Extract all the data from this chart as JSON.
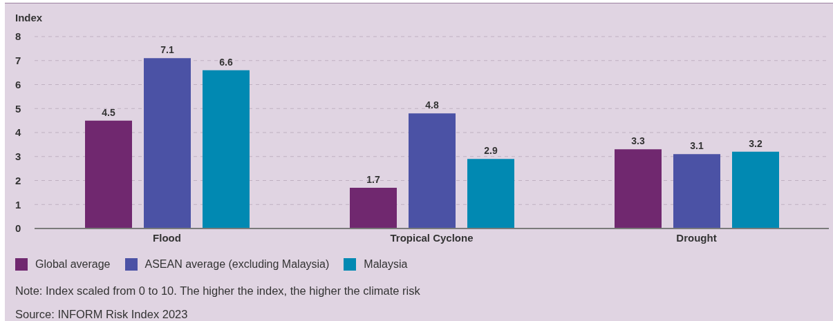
{
  "chart_data": {
    "type": "bar",
    "ylabel": "Index",
    "categories": [
      "Flood",
      "Tropical Cyclone",
      "Drought"
    ],
    "series": [
      {
        "name": "Global average",
        "color": "#70286f",
        "values": [
          4.5,
          1.7,
          3.3
        ]
      },
      {
        "name": "ASEAN average (excluding Malaysia)",
        "color": "#4b52a5",
        "values": [
          7.1,
          4.8,
          3.1
        ]
      },
      {
        "name": "Malaysia",
        "color": "#0189b2",
        "values": [
          6.6,
          2.9,
          3.2
        ]
      }
    ],
    "ylim": [
      0,
      8
    ],
    "yticks": [
      0,
      1,
      2,
      3,
      4,
      5,
      6,
      7,
      8
    ],
    "grid": "y",
    "legend": "bottom",
    "data_labels": true,
    "annotations": [
      "Note: Index scaled from 0 to 10. The higher the index, the higher the climate risk",
      "Source: INFORM Risk Index 2023"
    ]
  }
}
